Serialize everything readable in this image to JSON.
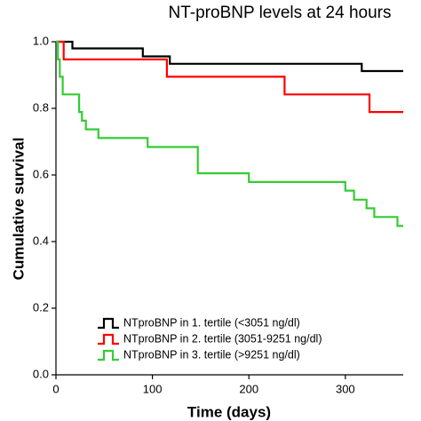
{
  "chart_data": {
    "type": "line",
    "step": true,
    "title": "NT-proBNP levels at 24 hours",
    "xlabel": "Time (days)",
    "ylabel": "Cumulative survival",
    "xlim": [
      0,
      360
    ],
    "ylim": [
      0,
      1
    ],
    "xticks": [
      0,
      100,
      200,
      300
    ],
    "yticks": [
      0.0,
      0.2,
      0.4,
      0.6,
      0.8,
      1.0
    ],
    "ytick_labels": [
      "0.0",
      "0.2",
      "0.4",
      "0.6",
      "0.8",
      "1.0"
    ],
    "legend_position": "lower-left",
    "series": [
      {
        "name": "NTproBNP in 1. tertile (<3051 ng/dl)",
        "color": "#000000",
        "points": [
          [
            0,
            1.0
          ],
          [
            17,
            1.0
          ],
          [
            17,
            0.98
          ],
          [
            90,
            0.98
          ],
          [
            90,
            0.956
          ],
          [
            118,
            0.956
          ],
          [
            118,
            0.934
          ],
          [
            317,
            0.934
          ],
          [
            317,
            0.912
          ],
          [
            360,
            0.912
          ]
        ]
      },
      {
        "name": "NTproBNP in 2. tertile (3051-9251 ng/dl)",
        "color": "#ff0000",
        "points": [
          [
            0,
            1.0
          ],
          [
            8,
            1.0
          ],
          [
            8,
            0.947
          ],
          [
            115,
            0.947
          ],
          [
            115,
            0.895
          ],
          [
            237,
            0.895
          ],
          [
            237,
            0.842
          ],
          [
            325,
            0.842
          ],
          [
            325,
            0.789
          ],
          [
            360,
            0.789
          ]
        ]
      },
      {
        "name": "NTproBNP in 3. tertile (>9251 ng/dl)",
        "color": "#33cc33",
        "points": [
          [
            0,
            1.0
          ],
          [
            2,
            1.0
          ],
          [
            2,
            0.947
          ],
          [
            4,
            0.947
          ],
          [
            4,
            0.895
          ],
          [
            7,
            0.895
          ],
          [
            7,
            0.842
          ],
          [
            24,
            0.842
          ],
          [
            24,
            0.789
          ],
          [
            27,
            0.789
          ],
          [
            27,
            0.763
          ],
          [
            31,
            0.763
          ],
          [
            31,
            0.737
          ],
          [
            44,
            0.737
          ],
          [
            44,
            0.711
          ],
          [
            95,
            0.711
          ],
          [
            95,
            0.684
          ],
          [
            147,
            0.684
          ],
          [
            147,
            0.605
          ],
          [
            200,
            0.605
          ],
          [
            200,
            0.579
          ],
          [
            300,
            0.579
          ],
          [
            300,
            0.553
          ],
          [
            309,
            0.553
          ],
          [
            309,
            0.526
          ],
          [
            322,
            0.526
          ],
          [
            322,
            0.5
          ],
          [
            330,
            0.5
          ],
          [
            330,
            0.474
          ],
          [
            354,
            0.474
          ],
          [
            354,
            0.447
          ],
          [
            360,
            0.447
          ]
        ]
      }
    ]
  }
}
